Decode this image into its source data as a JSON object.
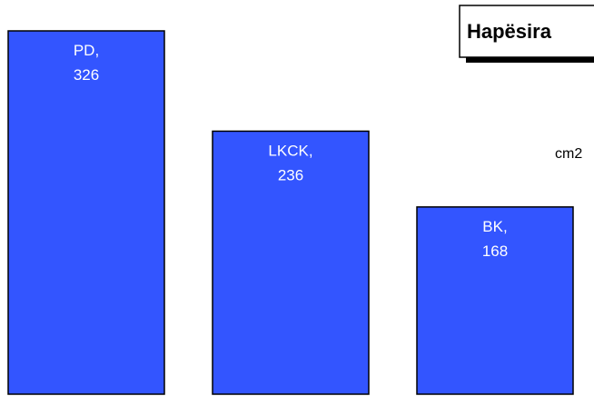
{
  "chart_data": {
    "type": "bar",
    "title": "Hapësira",
    "unit_label": "cm2",
    "categories": [
      "PD",
      "LKCK",
      "BK"
    ],
    "values": [
      326,
      236,
      168
    ],
    "data_labels": [
      {
        "name": "PD,",
        "value": "326"
      },
      {
        "name": "LKCK,",
        "value": "236"
      },
      {
        "name": "BK,",
        "value": "168"
      }
    ],
    "bar_color": "#3355ff",
    "grid": false,
    "legend": "none"
  }
}
